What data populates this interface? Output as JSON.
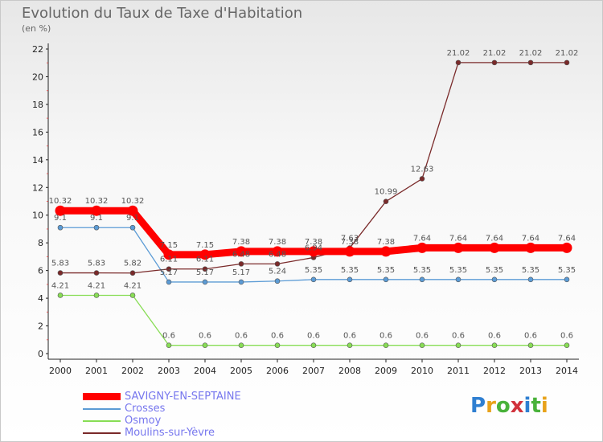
{
  "title": "Evolution du Taux de Taxe d'Habitation",
  "subtitle": "(en %)",
  "logo": "Proxiti",
  "chart_data": {
    "type": "line",
    "title": "Evolution du Taux de Taxe d'Habitation",
    "ylabel": "(en %)",
    "ylim": [
      0,
      22
    ],
    "yticks": [
      "0",
      "2",
      "4",
      "6",
      "8",
      "10",
      "12",
      "14",
      "16",
      "18",
      "20",
      "22"
    ],
    "x": [
      "2000",
      "2001",
      "2002",
      "2003",
      "2004",
      "2005",
      "2006",
      "2007",
      "2008",
      "2009",
      "2010",
      "2011",
      "2012",
      "2013",
      "2014"
    ],
    "grid": false,
    "series": [
      {
        "name": "SAVIGNY-EN-SEPTAINE",
        "color": "#ff0000",
        "values": [
          10.32,
          10.32,
          10.32,
          7.15,
          7.15,
          7.38,
          7.38,
          7.38,
          7.38,
          7.38,
          7.64,
          7.64,
          7.64,
          7.64,
          7.64
        ],
        "labels": [
          "10.32",
          "10.32",
          "10.32",
          "7.15",
          "7.15",
          "7.38",
          "7.38",
          "7.38",
          "7.38",
          "7.38",
          "7.64",
          "7.64",
          "7.64",
          "7.64",
          "7.64"
        ]
      },
      {
        "name": "Crosses",
        "color": "#5b9bd5",
        "values": [
          9.1,
          9.1,
          9.1,
          5.17,
          5.17,
          5.17,
          5.24,
          5.35,
          5.35,
          5.35,
          5.35,
          5.35,
          5.35,
          5.35,
          5.35
        ],
        "labels": [
          "9.1",
          "9.1",
          "9.1",
          "5.17",
          "5.17",
          "5.17",
          "5.24",
          "5.35",
          "5.35",
          "5.35",
          "5.35",
          "5.35",
          "5.35",
          "5.35",
          "5.35"
        ]
      },
      {
        "name": "Osmoy",
        "color": "#88dd55",
        "values": [
          4.21,
          4.21,
          4.21,
          0.6,
          0.6,
          0.6,
          0.6,
          0.6,
          0.6,
          0.6,
          0.6,
          0.6,
          0.6,
          0.6,
          0.6
        ],
        "labels": [
          "4.21",
          "4.21",
          "4.21",
          "0.6",
          "0.6",
          "0.6",
          "0.6",
          "0.6",
          "0.6",
          "0.6",
          "0.6",
          "0.6",
          "0.6",
          "0.6",
          "0.6"
        ]
      },
      {
        "name": "Moulins-sur-Yèvre",
        "color": "#7a2a2a",
        "values": [
          5.83,
          5.83,
          5.82,
          6.11,
          6.11,
          6.48,
          6.48,
          6.94,
          7.63,
          10.99,
          12.63,
          21.02,
          21.02,
          21.02,
          21.02
        ],
        "labels": [
          "5.83",
          "5.83",
          "5.82",
          "6.11",
          "6.11",
          "6.48",
          "6.48",
          "6.94",
          "7.63",
          "10.99",
          "12.63",
          "21.02",
          "21.02",
          "21.02",
          "21.02"
        ]
      }
    ]
  }
}
